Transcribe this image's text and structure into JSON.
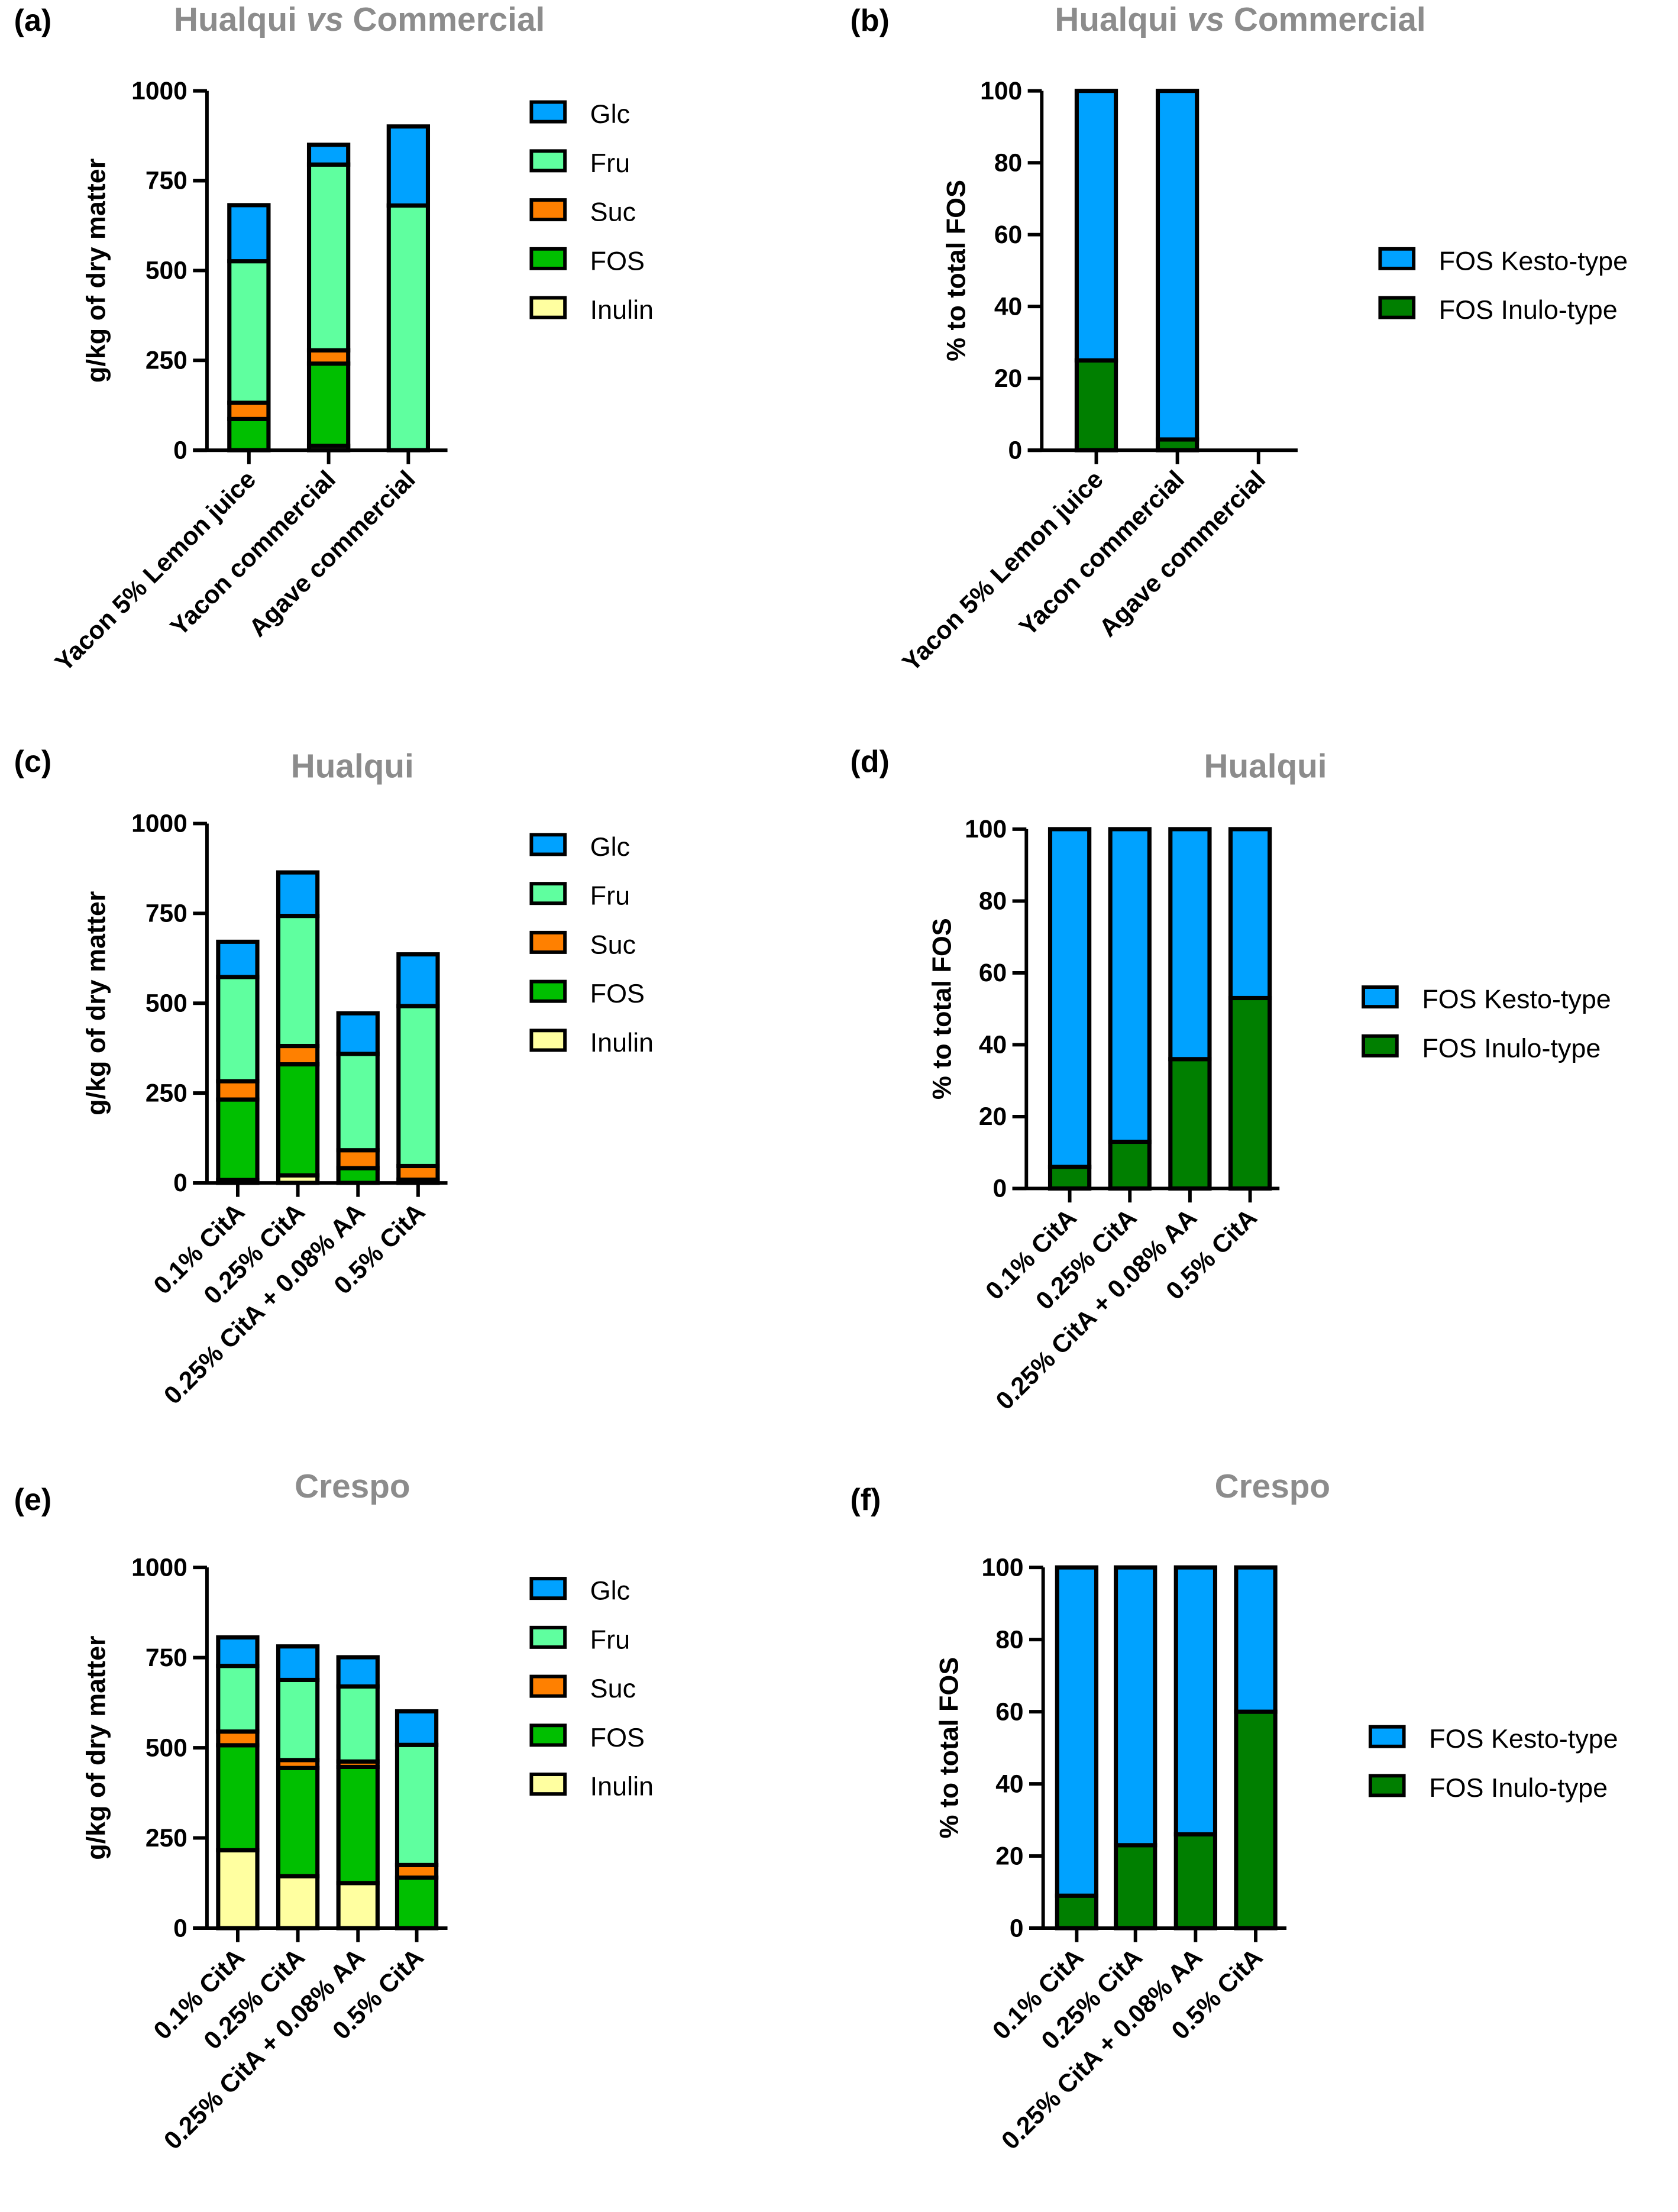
{
  "colors": {
    "Glc": "#00a2ff",
    "Fru": "#5fff9f",
    "Suc": "#ff8000",
    "FOS": "#00bf00",
    "Inulin": "#ffffa0",
    "FOS Kesto-type": "#00a2ff",
    "FOS Inulo-type": "#007f00",
    "axis": "#000000",
    "title": "#8c8c8c"
  },
  "chart_data": [
    {
      "panel": "(a)",
      "type": "bar",
      "stacked": true,
      "title_parts": [
        {
          "text": "Hualqui ",
          "italic": false
        },
        {
          "text": "vs",
          "italic": true
        },
        {
          "text": " Commercial",
          "italic": false
        }
      ],
      "ylabel": "g/kg of dry matter",
      "xlabel": "",
      "ylim": [
        0,
        1000
      ],
      "yticks": [
        "0",
        "250",
        "500",
        "750",
        "1000"
      ],
      "categories": [
        "Yacon 5% Lemon juice",
        "Yacon commercial",
        "Agave commercial"
      ],
      "series": [
        {
          "name": "Inulin",
          "values": [
            0,
            12,
            0
          ]
        },
        {
          "name": "FOS",
          "values": [
            87,
            229,
            0
          ]
        },
        {
          "name": "Suc",
          "values": [
            45,
            37,
            0
          ]
        },
        {
          "name": "Fru",
          "values": [
            394,
            517,
            681
          ]
        },
        {
          "name": "Glc",
          "values": [
            156,
            55,
            220
          ]
        }
      ],
      "legend": [
        "Glc",
        "Fru",
        "Suc",
        "FOS",
        "Inulin"
      ],
      "legend_position": "right"
    },
    {
      "panel": "(b)",
      "type": "bar",
      "stacked": true,
      "title_parts": [
        {
          "text": "Hualqui ",
          "italic": false
        },
        {
          "text": "vs",
          "italic": true
        },
        {
          "text": " Commercial",
          "italic": false
        }
      ],
      "ylabel": "% to total  FOS",
      "xlabel": "",
      "ylim": [
        0,
        100
      ],
      "yticks": [
        "0",
        "20",
        "40",
        "60",
        "80",
        "100"
      ],
      "categories": [
        "Yacon 5% Lemon juice",
        "Yacon commercial",
        "Agave commercial"
      ],
      "series": [
        {
          "name": "FOS Inulo-type",
          "values": [
            25,
            3,
            0
          ]
        },
        {
          "name": "FOS Kesto-type",
          "values": [
            75,
            97,
            0
          ]
        }
      ],
      "legend": [
        "FOS Kesto-type",
        "FOS Inulo-type"
      ],
      "legend_position": "right"
    },
    {
      "panel": "(c)",
      "type": "bar",
      "stacked": true,
      "title_parts": [
        {
          "text": "Hualqui",
          "italic": false
        }
      ],
      "ylabel": "g/kg of dry matter",
      "xlabel": "",
      "ylim": [
        0,
        1000
      ],
      "yticks": [
        "0",
        "250",
        "500",
        "750",
        "1000"
      ],
      "categories": [
        "0.1% CitA",
        "0.25% CitA",
        "0.25% CitA + 0.08% AA",
        "0.5% CitA"
      ],
      "series": [
        {
          "name": "Inulin",
          "values": [
            8,
            21,
            0,
            0
          ]
        },
        {
          "name": "FOS",
          "values": [
            224,
            309,
            41,
            9
          ]
        },
        {
          "name": "Suc",
          "values": [
            51,
            51,
            50,
            38
          ]
        },
        {
          "name": "Fru",
          "values": [
            290,
            362,
            268,
            445
          ]
        },
        {
          "name": "Glc",
          "values": [
            98,
            121,
            113,
            144
          ]
        }
      ],
      "legend": [
        "Glc",
        "Fru",
        "Suc",
        "FOS",
        "Inulin"
      ],
      "legend_position": "right"
    },
    {
      "panel": "(d)",
      "type": "bar",
      "stacked": true,
      "title_parts": [
        {
          "text": "Hualqui",
          "italic": false
        }
      ],
      "ylabel": "% to total  FOS",
      "xlabel": "",
      "ylim": [
        0,
        100
      ],
      "yticks": [
        "0",
        "20",
        "40",
        "60",
        "80",
        "100"
      ],
      "categories": [
        "0.1% CitA",
        "0.25% CitA",
        "0.25% CitA + 0.08% AA",
        "0.5% CitA"
      ],
      "series": [
        {
          "name": "FOS Inulo-type",
          "values": [
            6,
            13,
            36,
            53
          ]
        },
        {
          "name": "FOS Kesto-type",
          "values": [
            94,
            87,
            64,
            47
          ]
        }
      ],
      "legend": [
        "FOS Kesto-type",
        "FOS Inulo-type"
      ],
      "legend_position": "right"
    },
    {
      "panel": "(e)",
      "type": "bar",
      "stacked": true,
      "title_parts": [
        {
          "text": "Crespo",
          "italic": false
        }
      ],
      "ylabel": "g/kg of dry matter",
      "xlabel": "",
      "ylim": [
        0,
        1000
      ],
      "yticks": [
        "0",
        "250",
        "500",
        "750",
        "1000"
      ],
      "categories": [
        "0.1% CitA",
        "0.25% CitA",
        "0.25% CitA + 0.08% AA",
        "0.5% CitA"
      ],
      "series": [
        {
          "name": "Inulin",
          "values": [
            216,
            144,
            125,
            0
          ]
        },
        {
          "name": "FOS",
          "values": [
            291,
            300,
            322,
            140
          ]
        },
        {
          "name": "Suc",
          "values": [
            38,
            22,
            15,
            35
          ]
        },
        {
          "name": "Fru",
          "values": [
            182,
            222,
            208,
            333
          ]
        },
        {
          "name": "Glc",
          "values": [
            79,
            93,
            81,
            93
          ]
        }
      ],
      "legend": [
        "Glc",
        "Fru",
        "Suc",
        "FOS",
        "Inulin"
      ],
      "legend_position": "right"
    },
    {
      "panel": "(f)",
      "type": "bar",
      "stacked": true,
      "title_parts": [
        {
          "text": "Crespo",
          "italic": false
        }
      ],
      "ylabel": "% to total  FOS",
      "xlabel": "",
      "ylim": [
        0,
        100
      ],
      "yticks": [
        "0",
        "20",
        "40",
        "60",
        "80",
        "100"
      ],
      "categories": [
        "0.1% CitA",
        "0.25% CitA",
        "0.25% CitA + 0.08% AA",
        "0.5% CitA"
      ],
      "series": [
        {
          "name": "FOS Inulo-type",
          "values": [
            9,
            23,
            26,
            60
          ]
        },
        {
          "name": "FOS Kesto-type",
          "values": [
            91,
            77,
            74,
            40
          ]
        }
      ],
      "legend": [
        "FOS Kesto-type",
        "FOS Inulo-type"
      ],
      "legend_position": "right"
    }
  ]
}
